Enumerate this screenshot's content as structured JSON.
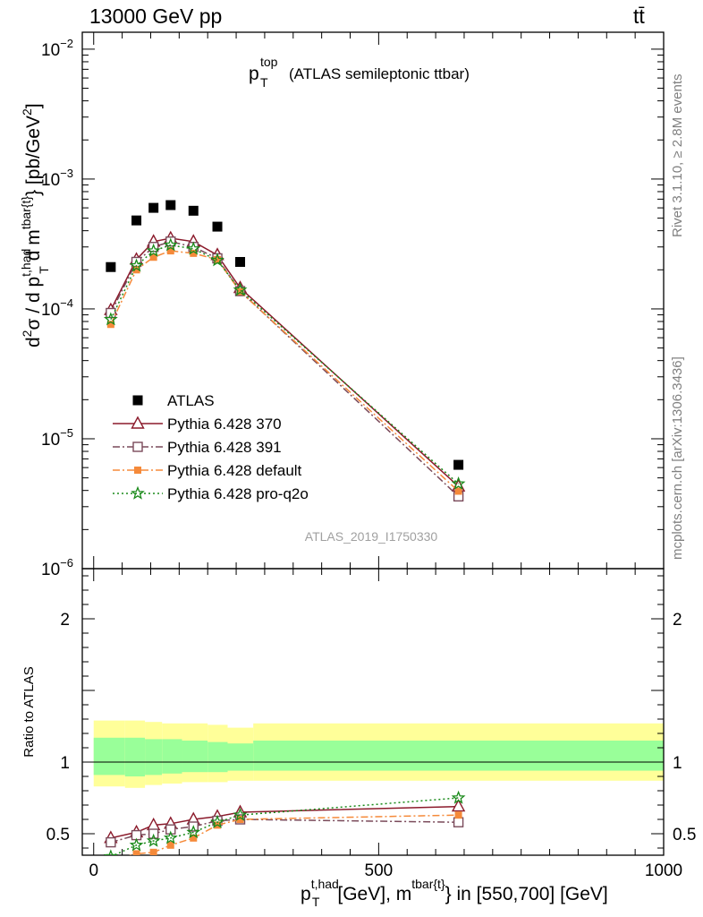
{
  "header": {
    "left": "13000 GeV pp",
    "right": "tt̄"
  },
  "side_labels": {
    "rivet": "Rivet 3.1.10, ≥ 2.8M events",
    "mcplots": "mcplots.cern.ch [arXiv:1306.3436]"
  },
  "plot_title": {
    "main": "p",
    "sup": "top",
    "sub": "T",
    "rest": "(ATLAS semileptonic ttbar)"
  },
  "analysis_id": "ATLAS_2019_I1750330",
  "ratio_ylabel": "Ratio to ATLAS",
  "chart_data": [
    {
      "type": "scatter",
      "panel": "main",
      "ylabel": "d²σ / d p_T^{t,had} d m^{tbar{t}} [pb/GeV²]",
      "y_scale": "log",
      "ylim": [
        1e-06,
        0.0135
      ],
      "xlim": [
        -20,
        1000
      ],
      "y_ticks": [
        {
          "value": 1e-06,
          "base": "10",
          "exp": "−6"
        },
        {
          "value": 1e-05,
          "base": "10",
          "exp": "−5"
        },
        {
          "value": 0.0001,
          "base": "10",
          "exp": "−4"
        },
        {
          "value": 0.001,
          "base": "10",
          "exp": "−3"
        },
        {
          "value": 0.01,
          "base": "10",
          "exp": "−2"
        }
      ],
      "legend_position": "lower-left",
      "series": [
        {
          "name": "ATLAS",
          "color": "#000000",
          "marker": "square-filled",
          "line": "none",
          "x": [
            30,
            75,
            105,
            135,
            175,
            217,
            257,
            640
          ],
          "y": [
            0.00021,
            0.00048,
            0.0006,
            0.00063,
            0.00057,
            0.00043,
            0.00023,
            6.3e-06
          ]
        },
        {
          "name": "Pythia 6.428 370",
          "color": "#8b1a2b",
          "marker": "triangle-open",
          "line": "solid",
          "x": [
            30,
            75,
            105,
            135,
            175,
            217,
            257,
            640
          ],
          "y": [
            9.8e-05,
            0.00024,
            0.00033,
            0.00035,
            0.00033,
            0.00026,
            0.000145,
            4.3e-06
          ]
        },
        {
          "name": "Pythia 6.428 391",
          "color": "#7a4a5a",
          "marker": "square-open",
          "line": "dashdot",
          "x": [
            30,
            75,
            105,
            135,
            175,
            217,
            257,
            640
          ],
          "y": [
            9.3e-05,
            0.00023,
            0.0003,
            0.00033,
            0.0003,
            0.000245,
            0.000137,
            3.6e-06
          ]
        },
        {
          "name": "Pythia 6.428 default",
          "color": "#f58a3a",
          "marker": "square-filled-small",
          "line": "dashdot",
          "x": [
            30,
            75,
            105,
            135,
            175,
            217,
            257,
            640
          ],
          "y": [
            7.6e-05,
            0.0002,
            0.00025,
            0.00028,
            0.000268,
            0.00024,
            0.000136,
            3.95e-06
          ]
        },
        {
          "name": "Pythia 6.428 pro-q2o",
          "color": "#1a8a1a",
          "marker": "star",
          "line": "dotted",
          "x": [
            30,
            75,
            105,
            135,
            175,
            217,
            257,
            640
          ],
          "y": [
            8.3e-05,
            0.000215,
            0.00028,
            0.00031,
            0.00029,
            0.000237,
            0.00014,
            4.5e-06
          ]
        }
      ]
    },
    {
      "type": "line",
      "panel": "ratio",
      "ylabel": "Ratio to ATLAS",
      "xlabel": "p_T^{t,had} [GeV], m^{tbar{t}} in [550,700] [GeV]",
      "xlim": [
        -20,
        1000
      ],
      "ylim": [
        0.35,
        2.35
      ],
      "x_ticks": [
        "0",
        "500",
        "1000"
      ],
      "y_ticks": [
        "0.5",
        "1",
        "2"
      ],
      "bands": {
        "colors": {
          "outer": "#ffff99",
          "inner": "#99ff99"
        },
        "bins": [
          {
            "x0": 0,
            "x1": 55,
            "outer_lo": 0.83,
            "outer_hi": 1.29,
            "inner_lo": 0.91,
            "inner_hi": 1.17
          },
          {
            "x0": 55,
            "x1": 90,
            "outer_lo": 0.82,
            "outer_hi": 1.29,
            "inner_lo": 0.9,
            "inner_hi": 1.17
          },
          {
            "x0": 90,
            "x1": 120,
            "outer_lo": 0.84,
            "outer_hi": 1.28,
            "inner_lo": 0.91,
            "inner_hi": 1.16
          },
          {
            "x0": 120,
            "x1": 155,
            "outer_lo": 0.85,
            "outer_hi": 1.27,
            "inner_lo": 0.92,
            "inner_hi": 1.16
          },
          {
            "x0": 155,
            "x1": 200,
            "outer_lo": 0.86,
            "outer_hi": 1.27,
            "inner_lo": 0.93,
            "inner_hi": 1.15
          },
          {
            "x0": 200,
            "x1": 235,
            "outer_lo": 0.86,
            "outer_hi": 1.26,
            "inner_lo": 0.93,
            "inner_hi": 1.14
          },
          {
            "x0": 235,
            "x1": 280,
            "outer_lo": 0.87,
            "outer_hi": 1.24,
            "inner_lo": 0.94,
            "inner_hi": 1.13
          },
          {
            "x0": 280,
            "x1": 1000,
            "outer_lo": 0.87,
            "outer_hi": 1.27,
            "inner_lo": 0.94,
            "inner_hi": 1.15
          }
        ]
      },
      "series": [
        {
          "name": "Pythia 6.428 370",
          "color": "#8b1a2b",
          "marker": "triangle-open",
          "line": "solid",
          "x": [
            30,
            75,
            105,
            135,
            175,
            217,
            257,
            640
          ],
          "y": [
            0.47,
            0.51,
            0.56,
            0.57,
            0.6,
            0.62,
            0.65,
            0.69
          ]
        },
        {
          "name": "Pythia 6.428 391",
          "color": "#7a4a5a",
          "marker": "square-open",
          "line": "dashdot",
          "x": [
            30,
            75,
            105,
            135,
            175,
            217,
            257,
            640
          ],
          "y": [
            0.44,
            0.49,
            0.5,
            0.53,
            0.55,
            0.59,
            0.6,
            0.58
          ]
        },
        {
          "name": "Pythia 6.428 default",
          "color": "#f58a3a",
          "marker": "square-filled-small",
          "line": "dashdot",
          "x": [
            30,
            75,
            105,
            135,
            175,
            217,
            257,
            640
          ],
          "y": [
            0.31,
            0.36,
            0.37,
            0.42,
            0.47,
            0.56,
            0.6,
            0.63
          ]
        },
        {
          "name": "Pythia 6.428 pro-q2o",
          "color": "#1a8a1a",
          "marker": "star",
          "line": "dotted",
          "x": [
            30,
            75,
            105,
            135,
            175,
            217,
            257,
            640
          ],
          "y": [
            0.34,
            0.42,
            0.45,
            0.47,
            0.51,
            0.58,
            0.63,
            0.75
          ]
        }
      ]
    }
  ]
}
